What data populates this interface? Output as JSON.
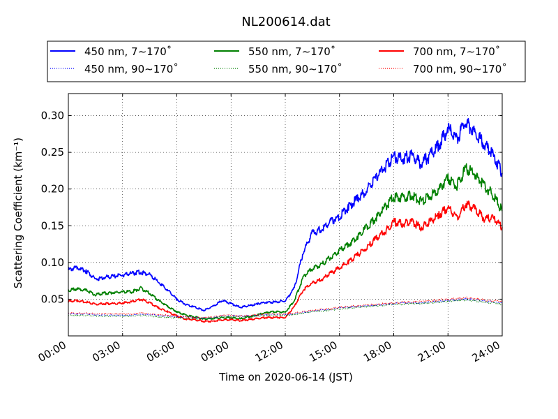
{
  "chart_data": {
    "type": "line",
    "title": "NL200614.dat",
    "xlabel": "Time on 2020-06-14 (JST)",
    "ylabel": "Scattering Coefficient (km⁻¹)",
    "xlim": [
      0,
      24
    ],
    "ylim": [
      0.0,
      0.33
    ],
    "grid": true,
    "legend_position": "top",
    "x_ticks": [
      {
        "x": 0,
        "label": "00:00"
      },
      {
        "x": 3,
        "label": "03:00"
      },
      {
        "x": 6,
        "label": "06:00"
      },
      {
        "x": 9,
        "label": "09:00"
      },
      {
        "x": 12,
        "label": "12:00"
      },
      {
        "x": 15,
        "label": "15:00"
      },
      {
        "x": 18,
        "label": "18:00"
      },
      {
        "x": 21,
        "label": "21:00"
      },
      {
        "x": 24,
        "label": "24:00"
      }
    ],
    "y_ticks": [
      {
        "y": 0.05,
        "label": "0.05"
      },
      {
        "y": 0.1,
        "label": "0.10"
      },
      {
        "y": 0.15,
        "label": "0.15"
      },
      {
        "y": 0.2,
        "label": "0.20"
      },
      {
        "y": 0.25,
        "label": "0.25"
      },
      {
        "y": 0.3,
        "label": "0.30"
      }
    ],
    "x": [
      0,
      0.5,
      1,
      1.5,
      2,
      2.5,
      3,
      3.5,
      4,
      4.5,
      5,
      5.5,
      6,
      6.5,
      7,
      7.5,
      8,
      8.5,
      9,
      9.5,
      10,
      10.5,
      11,
      11.5,
      12,
      12.5,
      13,
      13.5,
      14,
      14.5,
      15,
      15.5,
      16,
      16.5,
      17,
      17.5,
      18,
      18.5,
      19,
      19.5,
      20,
      20.5,
      21,
      21.5,
      22,
      22.5,
      23,
      23.5,
      24
    ],
    "series": [
      {
        "name": "450 nm, 7∼170˚",
        "color": "#0000ff",
        "style": "solid",
        "values": [
          0.09,
          0.093,
          0.088,
          0.077,
          0.08,
          0.081,
          0.083,
          0.085,
          0.087,
          0.083,
          0.073,
          0.062,
          0.05,
          0.043,
          0.039,
          0.035,
          0.04,
          0.048,
          0.044,
          0.039,
          0.041,
          0.044,
          0.046,
          0.046,
          0.048,
          0.065,
          0.115,
          0.14,
          0.145,
          0.155,
          0.163,
          0.175,
          0.187,
          0.198,
          0.215,
          0.23,
          0.243,
          0.242,
          0.245,
          0.235,
          0.245,
          0.26,
          0.282,
          0.268,
          0.292,
          0.275,
          0.262,
          0.245,
          0.222
        ]
      },
      {
        "name": "550 nm, 7∼170˚",
        "color": "#008000",
        "style": "solid",
        "values": [
          0.062,
          0.064,
          0.062,
          0.056,
          0.058,
          0.059,
          0.06,
          0.06,
          0.065,
          0.058,
          0.048,
          0.04,
          0.033,
          0.028,
          0.026,
          0.023,
          0.024,
          0.025,
          0.025,
          0.023,
          0.026,
          0.029,
          0.032,
          0.033,
          0.032,
          0.048,
          0.08,
          0.092,
          0.097,
          0.107,
          0.116,
          0.125,
          0.135,
          0.148,
          0.16,
          0.175,
          0.189,
          0.188,
          0.192,
          0.183,
          0.19,
          0.2,
          0.215,
          0.205,
          0.228,
          0.22,
          0.205,
          0.192,
          0.17
        ]
      },
      {
        "name": "700 nm, 7∼170˚",
        "color": "#ff0000",
        "style": "solid",
        "values": [
          0.047,
          0.048,
          0.046,
          0.043,
          0.044,
          0.044,
          0.045,
          0.046,
          0.05,
          0.045,
          0.038,
          0.033,
          0.027,
          0.023,
          0.022,
          0.02,
          0.02,
          0.022,
          0.022,
          0.021,
          0.022,
          0.024,
          0.025,
          0.025,
          0.025,
          0.04,
          0.063,
          0.072,
          0.077,
          0.085,
          0.093,
          0.101,
          0.11,
          0.12,
          0.132,
          0.142,
          0.155,
          0.153,
          0.155,
          0.148,
          0.155,
          0.165,
          0.175,
          0.16,
          0.18,
          0.172,
          0.16,
          0.16,
          0.148
        ]
      },
      {
        "name": "450 nm, 90∼170˚",
        "color": "#0000ff",
        "style": "dotted",
        "values": [
          0.03,
          0.03,
          0.03,
          0.029,
          0.028,
          0.028,
          0.028,
          0.028,
          0.029,
          0.029,
          0.028,
          0.027,
          0.026,
          0.026,
          0.025,
          0.024,
          0.025,
          0.027,
          0.027,
          0.027,
          0.027,
          0.028,
          0.029,
          0.029,
          0.029,
          0.03,
          0.032,
          0.034,
          0.035,
          0.036,
          0.038,
          0.039,
          0.04,
          0.041,
          0.042,
          0.043,
          0.044,
          0.045,
          0.045,
          0.045,
          0.046,
          0.047,
          0.048,
          0.049,
          0.05,
          0.049,
          0.047,
          0.046,
          0.045
        ]
      },
      {
        "name": "550 nm, 90∼170˚",
        "color": "#008000",
        "style": "dotted",
        "values": [
          0.028,
          0.028,
          0.028,
          0.027,
          0.027,
          0.027,
          0.027,
          0.027,
          0.028,
          0.027,
          0.026,
          0.025,
          0.025,
          0.024,
          0.024,
          0.023,
          0.024,
          0.026,
          0.026,
          0.026,
          0.026,
          0.027,
          0.028,
          0.028,
          0.028,
          0.029,
          0.031,
          0.033,
          0.034,
          0.035,
          0.037,
          0.038,
          0.039,
          0.04,
          0.041,
          0.042,
          0.043,
          0.043,
          0.044,
          0.044,
          0.045,
          0.046,
          0.047,
          0.048,
          0.049,
          0.048,
          0.046,
          0.045,
          0.043
        ]
      },
      {
        "name": "700 nm, 90∼170˚",
        "color": "#ff0000",
        "style": "dotted",
        "values": [
          0.031,
          0.031,
          0.031,
          0.03,
          0.03,
          0.03,
          0.03,
          0.03,
          0.031,
          0.03,
          0.029,
          0.028,
          0.027,
          0.026,
          0.025,
          0.025,
          0.026,
          0.028,
          0.028,
          0.027,
          0.028,
          0.029,
          0.03,
          0.03,
          0.03,
          0.031,
          0.033,
          0.035,
          0.036,
          0.037,
          0.039,
          0.04,
          0.041,
          0.042,
          0.043,
          0.044,
          0.045,
          0.046,
          0.046,
          0.047,
          0.048,
          0.049,
          0.05,
          0.051,
          0.052,
          0.051,
          0.049,
          0.048,
          0.047
        ]
      }
    ]
  }
}
